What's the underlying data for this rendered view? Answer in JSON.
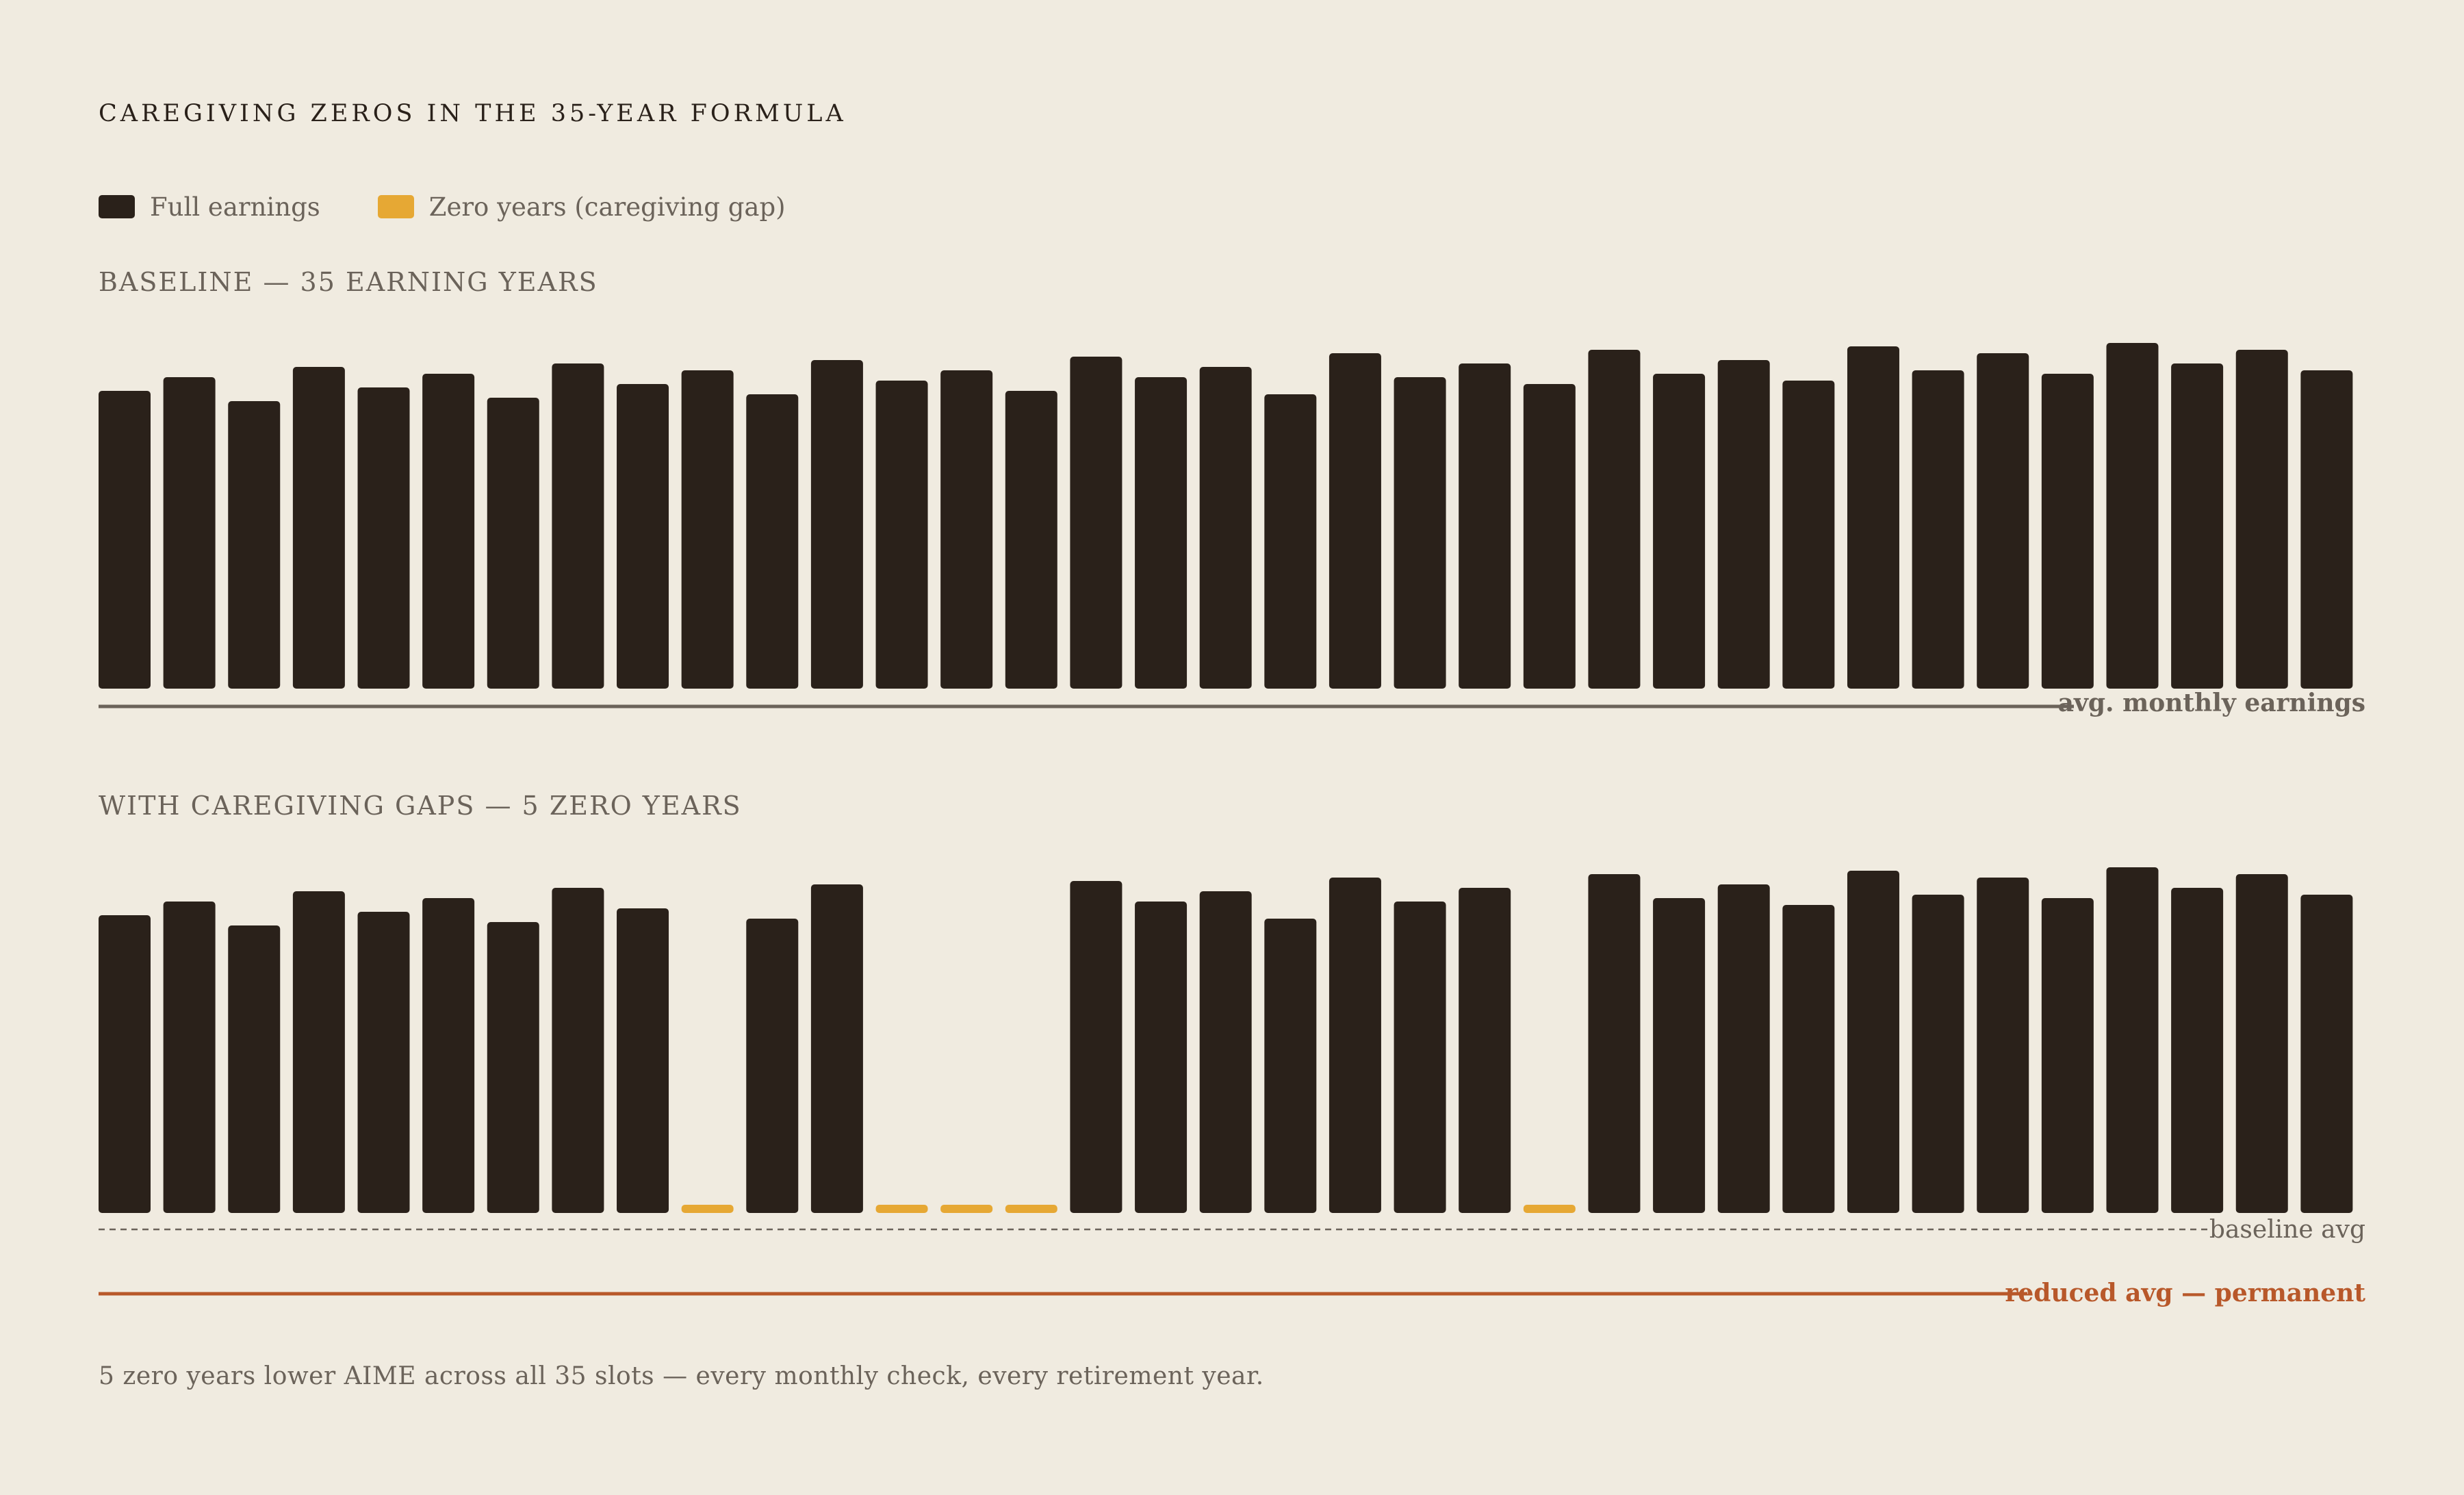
{
  "chart_data": {
    "type": "bar",
    "title": "CAREGIVING ZEROS IN THE 35-YEAR FORMULA",
    "legend": [
      {
        "label": "Full earnings",
        "color": "#2a211a"
      },
      {
        "label": "Zero years (caregiving gap)",
        "color": "#e6a834"
      }
    ],
    "panels": [
      {
        "label": "BASELINE — 35 EARNING YEARS",
        "values": [
          0.87,
          0.91,
          0.84,
          0.94,
          0.88,
          0.92,
          0.85,
          0.95,
          0.89,
          0.93,
          0.86,
          0.96,
          0.9,
          0.93,
          0.87,
          0.97,
          0.91,
          0.94,
          0.86,
          0.98,
          0.91,
          0.95,
          0.89,
          0.99,
          0.92,
          0.96,
          0.9,
          1.0,
          0.93,
          0.98,
          0.92,
          1.01,
          0.95,
          0.99,
          0.93
        ],
        "reference_lines": [
          {
            "label": "avg. monthly earnings",
            "style": "solid",
            "color": "#6b635a"
          }
        ]
      },
      {
        "label": "WITH CAREGIVING GAPS — 5 ZERO YEARS",
        "values": [
          0.87,
          0.91,
          0.84,
          0.94,
          0.88,
          0.92,
          0.85,
          0.95,
          0.89,
          0,
          0.86,
          0.96,
          0,
          0,
          0,
          0.97,
          0.91,
          0.94,
          0.86,
          0.98,
          0.91,
          0.95,
          0,
          0.99,
          0.92,
          0.96,
          0.9,
          1.0,
          0.93,
          0.98,
          0.92,
          1.01,
          0.95,
          0.99,
          0.93
        ],
        "zero_years": [
          10,
          13,
          14,
          15,
          23
        ],
        "reference_lines": [
          {
            "label": "baseline avg",
            "style": "dashed",
            "color": "#6b635a"
          },
          {
            "label": "reduced avg — permanent",
            "style": "solid",
            "color": "#b8582a"
          }
        ]
      }
    ]
  },
  "caption": "5 zero years lower AIME across all 35 slots — every monthly check, every retirement year."
}
